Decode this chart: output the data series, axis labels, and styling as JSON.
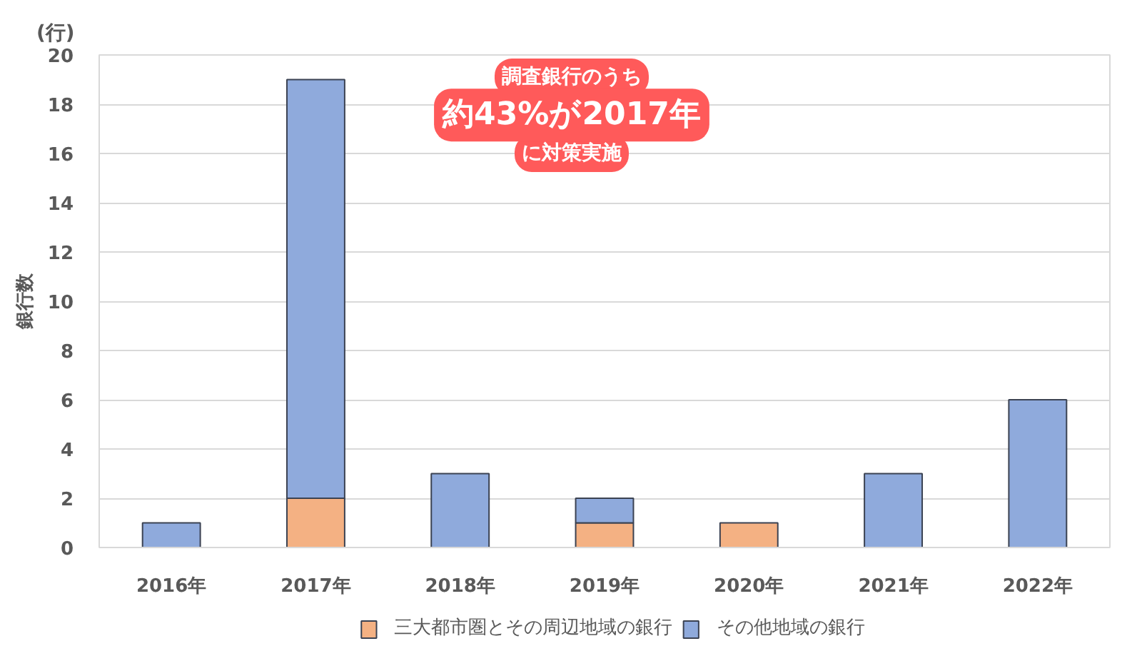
{
  "chart_data": {
    "type": "bar",
    "stacked": true,
    "ylabel": "銀行数",
    "categories": [
      "2016年",
      "2017年",
      "2018年",
      "2019年",
      "2020年",
      "2021年",
      "2022年"
    ],
    "series": [
      {
        "name": "三大都市圏とその周辺地域の銀行",
        "color": "#f4b183",
        "values": [
          0,
          2,
          0,
          1,
          1,
          0,
          0
        ]
      },
      {
        "name": "その他地域の銀行",
        "color": "#8faadc",
        "values": [
          1,
          17,
          3,
          1,
          0,
          3,
          6
        ]
      }
    ],
    "ylim": [
      0,
      20
    ],
    "yticks": [
      0,
      2,
      4,
      6,
      8,
      10,
      12,
      14,
      16,
      18,
      20
    ],
    "grid": "y",
    "legend": "bottom",
    "annotations": [
      "(行)",
      "調査銀行のうち",
      "約43%が2017年",
      "に対策実施"
    ]
  }
}
